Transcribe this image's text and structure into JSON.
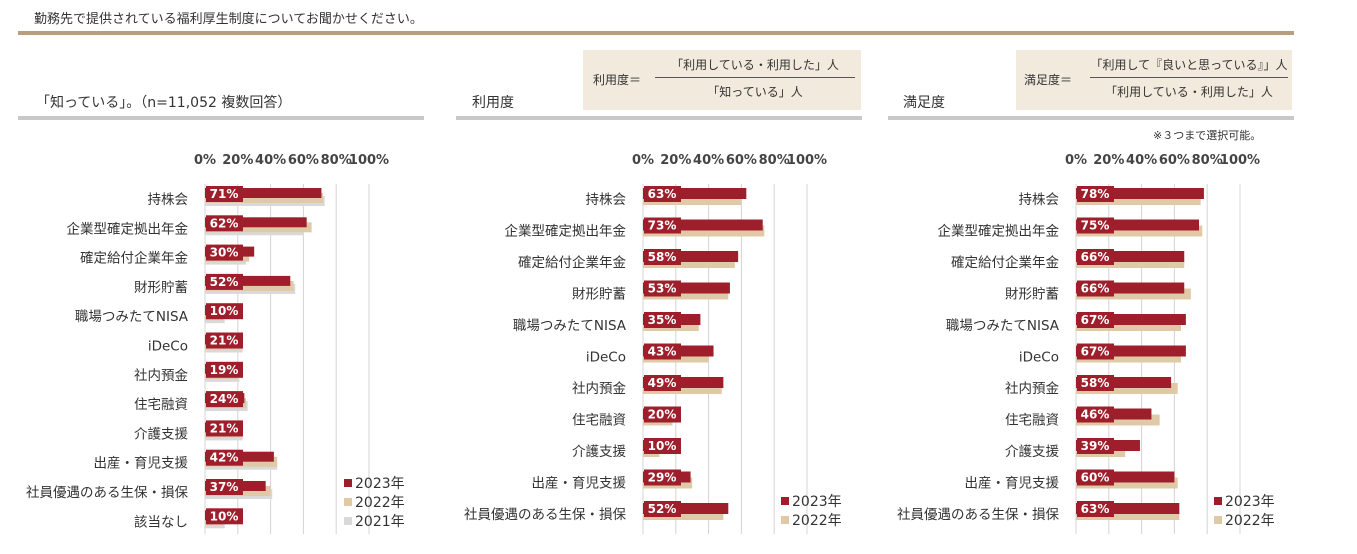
{
  "header": "勤務先で提供されている福利厚生制度についてお聞かせください。",
  "panels": [
    {
      "title": "「知っている」。（n=11,052 複数回答）"
    },
    {
      "title": "利用度",
      "formula": {
        "lhs": "利用度＝",
        "numerator": "「利用している・利用した」人",
        "denominator": "「知っている」人"
      }
    },
    {
      "title": "満足度",
      "formula": {
        "lhs": "満足度＝",
        "numerator": "「利用して『良いと思っている』」人",
        "denominator": "「利用している・利用した」人"
      },
      "note": "※３つまで選択可能。"
    }
  ],
  "legends": [
    [
      "2023年",
      "2022年",
      "2021年"
    ],
    [
      "2023年",
      "2022年"
    ],
    [
      "2023年",
      "2022年"
    ]
  ],
  "colors": {
    "y2023": "#9e1f2b",
    "y2022": "#e0c9a6",
    "y2021": "#d9d9d9",
    "grid": "#d4d4d4",
    "rule": "#b79f7e"
  },
  "chart_data": [
    {
      "type": "bar",
      "ticks": [
        "0%",
        "20%",
        "40%",
        "60%",
        "80%",
        "100%"
      ],
      "xlim": [
        0,
        100
      ],
      "categories": [
        "持株会",
        "企業型確定拠出年金",
        "確定給付企業年金",
        "財形貯蓄",
        "職場つみたてNISA",
        "iDeCo",
        "社内預金",
        "住宅融資",
        "介護支援",
        "出産・育児支援",
        "社員優遇のある生保・損保",
        "該当なし"
      ],
      "series": [
        {
          "name": "2023年",
          "values": [
            71,
            62,
            30,
            52,
            10,
            21,
            19,
            24,
            21,
            42,
            37,
            10
          ]
        },
        {
          "name": "2022年",
          "values": [
            72,
            65,
            27,
            54,
            11,
            22,
            20,
            25,
            22,
            44,
            40,
            11
          ]
        },
        {
          "name": "2021年",
          "values": [
            73,
            60,
            25,
            55,
            12,
            23,
            21,
            26,
            23,
            44,
            41,
            12
          ]
        }
      ]
    },
    {
      "type": "bar",
      "ticks": [
        "0%",
        "20%",
        "40%",
        "60%",
        "80%",
        "100%"
      ],
      "xlim": [
        0,
        100
      ],
      "categories": [
        "持株会",
        "企業型確定拠出年金",
        "確定給付企業年金",
        "財形貯蓄",
        "職場つみたてNISA",
        "iDeCo",
        "社内預金",
        "住宅融資",
        "介護支援",
        "出産・育児支援",
        "社員優遇のある生保・損保"
      ],
      "series": [
        {
          "name": "2023年",
          "values": [
            63,
            73,
            58,
            53,
            35,
            43,
            49,
            20,
            10,
            29,
            52
          ]
        },
        {
          "name": "2022年",
          "values": [
            60,
            74,
            56,
            52,
            34,
            40,
            48,
            18,
            10,
            30,
            49
          ]
        }
      ]
    },
    {
      "type": "bar",
      "ticks": [
        "0%",
        "20%",
        "40%",
        "60%",
        "80%",
        "100%"
      ],
      "xlim": [
        0,
        100
      ],
      "categories": [
        "持株会",
        "企業型確定拠出年金",
        "確定給付企業年金",
        "財形貯蓄",
        "職場つみたてNISA",
        "iDeCo",
        "社内預金",
        "住宅融資",
        "介護支援",
        "出産・育児支援",
        "社員優遇のある生保・損保"
      ],
      "series": [
        {
          "name": "2023年",
          "values": [
            78,
            75,
            66,
            66,
            67,
            67,
            58,
            46,
            39,
            60,
            63
          ]
        },
        {
          "name": "2022年",
          "values": [
            76,
            77,
            66,
            70,
            64,
            64,
            62,
            51,
            30,
            62,
            63
          ]
        }
      ]
    }
  ]
}
